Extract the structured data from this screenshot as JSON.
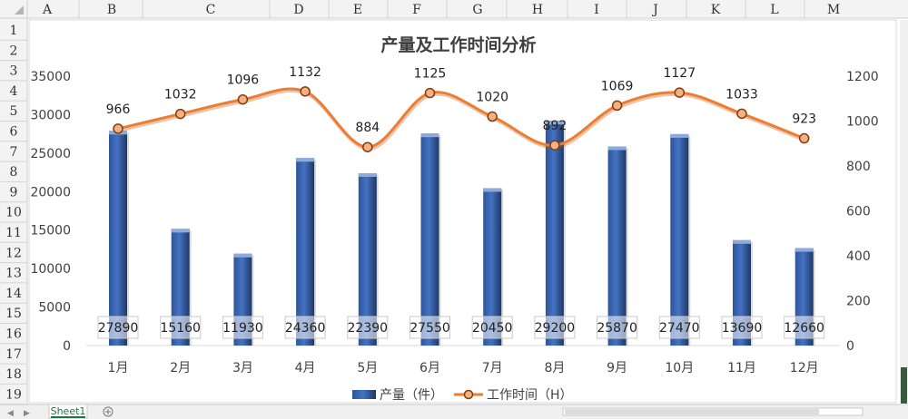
{
  "spreadsheet": {
    "columns": [
      "A",
      "B",
      "C",
      "D",
      "E",
      "F",
      "G",
      "H",
      "I",
      "J",
      "K",
      "L",
      "M"
    ],
    "rows": [
      "1",
      "2",
      "3",
      "4",
      "5",
      "6",
      "7",
      "8",
      "9",
      "10",
      "11",
      "12",
      "13",
      "14",
      "15",
      "16",
      "17",
      "18",
      "19"
    ],
    "sheet_tab": "Sheet1",
    "add_sheet_icon": "plus-circle-icon"
  },
  "chart_data": {
    "type": "bar",
    "title": "产量及工作时间分析",
    "categories": [
      "1月",
      "2月",
      "3月",
      "4月",
      "5月",
      "6月",
      "7月",
      "8月",
      "9月",
      "10月",
      "11月",
      "12月"
    ],
    "series": [
      {
        "name": "产量（件）",
        "type": "bar",
        "axis": "left",
        "color": "#4472c4",
        "values": [
          27890,
          15160,
          11930,
          24360,
          22390,
          27550,
          20450,
          29200,
          25870,
          27470,
          13690,
          12660
        ]
      },
      {
        "name": "工作时间（H）",
        "type": "line",
        "axis": "right",
        "color": "#ed7d31",
        "smooth": true,
        "values": [
          966,
          1032,
          1096,
          1132,
          884,
          1125,
          1020,
          892,
          1069,
          1127,
          1033,
          923
        ]
      }
    ],
    "y_left": {
      "min": 0,
      "max": 35000,
      "ticks": [
        "0",
        "5000",
        "10000",
        "15000",
        "20000",
        "25000",
        "30000",
        "35000"
      ]
    },
    "y_right": {
      "min": 0,
      "max": 1200,
      "ticks": [
        "0",
        "200",
        "400",
        "600",
        "800",
        "1000",
        "1200"
      ]
    },
    "bar_data_labels": [
      "27890",
      "15160",
      "11930",
      "24360",
      "22390",
      "27550",
      "20450",
      "29200",
      "25870",
      "27470",
      "13690",
      "12660"
    ],
    "line_data_labels": [
      "966",
      "1032",
      "1096",
      "1132",
      "884",
      "1125",
      "1020",
      "892",
      "1069",
      "1127",
      "1033",
      "923"
    ],
    "legend": "bottom",
    "gridlines": false
  }
}
